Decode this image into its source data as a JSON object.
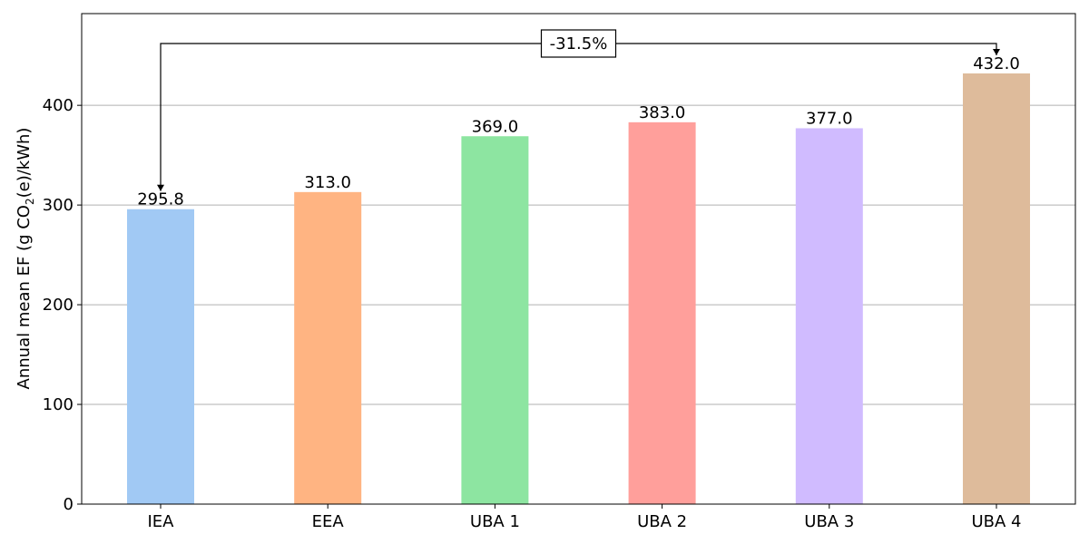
{
  "chart_data": {
    "type": "bar",
    "categories": [
      "IEA",
      "EEA",
      "UBA 1",
      "UBA 2",
      "UBA 3",
      "UBA 4"
    ],
    "values": [
      295.8,
      313.0,
      369.0,
      383.0,
      377.0,
      432.0
    ],
    "value_labels": [
      "295.8",
      "313.0",
      "369.0",
      "383.0",
      "377.0",
      "432.0"
    ],
    "colors": [
      "#a1c9f4",
      "#ffb482",
      "#8de5a1",
      "#ff9f9b",
      "#d0bbff",
      "#debb9b"
    ],
    "ylabel_main": "Annual mean EF (g CO",
    "ylabel_sub": "2",
    "ylabel_tail": "(e)/kWh)",
    "ylim": [
      0,
      492
    ],
    "yticks": [
      0,
      100,
      200,
      300,
      400
    ],
    "grid": "horizontal",
    "annotation": {
      "text": "-31.5%",
      "from_category": "IEA",
      "to_category": "UBA 4"
    }
  }
}
